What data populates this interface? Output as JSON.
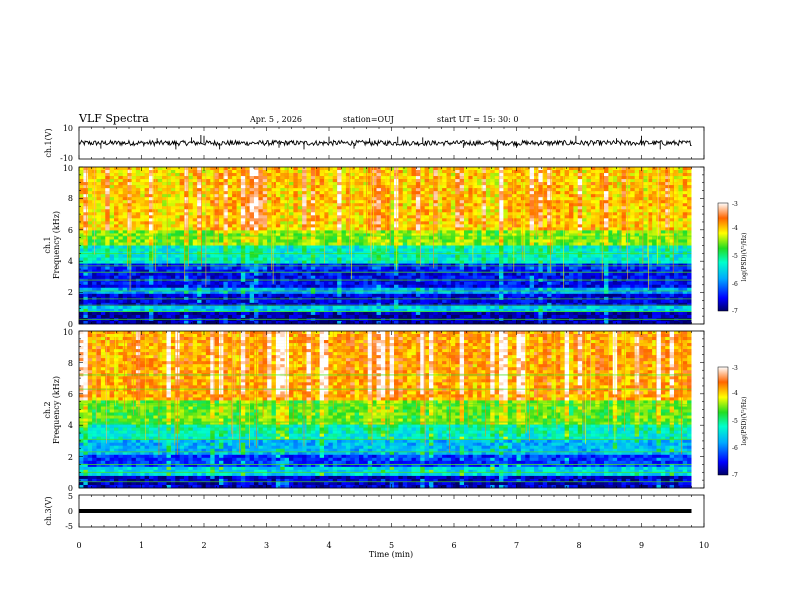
{
  "header": {
    "title": "VLF Spectra",
    "date": "Apr. 5 , 2026",
    "station": "station=OUJ",
    "start": "start UT = 15: 30: 0"
  },
  "chart_data": [
    {
      "type": "line",
      "panel": "ch1-waveform",
      "ylabel": "ch.1(V)",
      "ylim": [
        -10,
        10
      ],
      "yticks": [
        "10",
        "-10"
      ],
      "x_range_min": [
        0,
        9.8
      ],
      "baseline": 0,
      "noise_amplitude": 1.6,
      "spikes": [
        {
          "t": 0.35,
          "v": -3.5
        },
        {
          "t": 1.25,
          "v": 3
        },
        {
          "t": 1.55,
          "v": -4
        },
        {
          "t": 1.8,
          "v": 3.5
        },
        {
          "t": 1.95,
          "v": 5
        },
        {
          "t": 2.0,
          "v": 4.5
        },
        {
          "t": 2.25,
          "v": -4
        },
        {
          "t": 3.2,
          "v": -3
        },
        {
          "t": 3.6,
          "v": -4
        },
        {
          "t": 4.0,
          "v": 4
        },
        {
          "t": 4.4,
          "v": -3.5
        },
        {
          "t": 4.65,
          "v": 3
        },
        {
          "t": 5.1,
          "v": 4
        },
        {
          "t": 5.5,
          "v": 3.5
        },
        {
          "t": 6.15,
          "v": -3
        },
        {
          "t": 6.7,
          "v": -4.5
        },
        {
          "t": 7.0,
          "v": -3
        },
        {
          "t": 7.95,
          "v": 4.5
        },
        {
          "t": 8.6,
          "v": 3
        },
        {
          "t": 9.3,
          "v": -4
        },
        {
          "t": 9.0,
          "v": 4.5
        }
      ]
    },
    {
      "type": "heatmap",
      "panel": "ch1-spectrogram",
      "ylabel": "ch.1\nFrequency (kHz)",
      "ylim": [
        0,
        10
      ],
      "yticks": [
        "0",
        "2",
        "4",
        "6",
        "8",
        "10"
      ],
      "x_range_min": [
        0,
        9.8
      ],
      "colorbar": {
        "label": "log(PSD)(V²/Hz)",
        "range": [
          -7,
          -3
        ],
        "ticks": [
          "-3",
          "-4",
          "-5",
          "-6",
          "-7"
        ]
      },
      "layers_khz_to_level": [
        [
          0,
          0.7,
          -6.8
        ],
        [
          0.7,
          1.1,
          -5.6
        ],
        [
          1.1,
          2.0,
          -6.6
        ],
        [
          2.0,
          2.4,
          -5.8
        ],
        [
          2.4,
          3.8,
          -6.5
        ],
        [
          3.8,
          5.0,
          -5.4
        ],
        [
          5.0,
          6.0,
          -4.6
        ],
        [
          6.0,
          10.0,
          -4.1
        ]
      ],
      "tones_khz": [
        0.3,
        0.8,
        1.2,
        1.6,
        2.1,
        2.8,
        3.3,
        3.7,
        4.5,
        5.6
      ]
    },
    {
      "type": "heatmap",
      "panel": "ch2-spectrogram",
      "ylabel": "ch.2\nFrequency (kHz)",
      "ylim": [
        0,
        10
      ],
      "yticks": [
        "0",
        "2",
        "4",
        "6",
        "8",
        "10"
      ],
      "x_range_min": [
        0,
        9.8
      ],
      "colorbar": {
        "label": "log(PSD)(V²/Hz)",
        "range": [
          -7,
          -3
        ],
        "ticks": [
          "-3",
          "-4",
          "-5",
          "-6",
          "-7"
        ]
      },
      "layers_khz_to_level": [
        [
          0,
          0.8,
          -6.7
        ],
        [
          0.8,
          1.4,
          -5.5
        ],
        [
          1.4,
          2.2,
          -6.3
        ],
        [
          2.2,
          3.0,
          -5.7
        ],
        [
          3.0,
          4.0,
          -5.3
        ],
        [
          4.0,
          5.5,
          -4.7
        ],
        [
          5.5,
          10.0,
          -3.9
        ]
      ],
      "tones_khz": [
        0.4,
        1.0,
        1.5,
        2.3,
        3.1,
        4.2,
        5.3,
        6.3,
        7.2
      ]
    },
    {
      "type": "line",
      "panel": "ch3-waveform",
      "ylabel": "ch.3(V)",
      "ylim": [
        -5,
        5
      ],
      "yticks": [
        "5",
        "0",
        "-5"
      ],
      "x_range_min": [
        0,
        9.8
      ],
      "baseline": 0
    }
  ],
  "x_axis": {
    "label": "Time (min)",
    "range": [
      0,
      10
    ],
    "ticks": [
      "0",
      "1",
      "2",
      "3",
      "4",
      "5",
      "6",
      "7",
      "8",
      "9",
      "10"
    ]
  }
}
